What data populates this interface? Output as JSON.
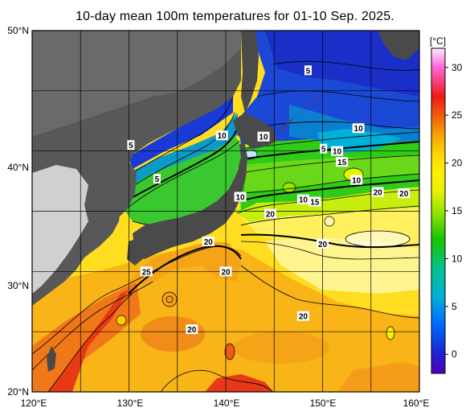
{
  "title": "10-day mean 100m temperatures for 01-10 Sep. 2025.",
  "colorbar": {
    "unit_label": "[°C]",
    "ticks": [
      "30",
      "25",
      "20",
      "15",
      "10",
      "5",
      "0"
    ],
    "tick_values": [
      30,
      25,
      20,
      15,
      10,
      5,
      0
    ],
    "range": [
      -2,
      32
    ],
    "stops": [
      {
        "value": 32,
        "color": "#ffe9ff"
      },
      {
        "value": 30,
        "color": "#ff66dd"
      },
      {
        "value": 27,
        "color": "#f01818"
      },
      {
        "value": 25,
        "color": "#f05a10"
      },
      {
        "value": 23,
        "color": "#f5a000"
      },
      {
        "value": 21,
        "color": "#ffd500"
      },
      {
        "value": 19,
        "color": "#fff000"
      },
      {
        "value": 17,
        "color": "#e6f200"
      },
      {
        "value": 15,
        "color": "#9ae600"
      },
      {
        "value": 12,
        "color": "#16c400"
      },
      {
        "value": 9,
        "color": "#00c48a"
      },
      {
        "value": 6,
        "color": "#00b0d8"
      },
      {
        "value": 3,
        "color": "#0066ff"
      },
      {
        "value": 0,
        "color": "#1e22d0"
      },
      {
        "value": -2,
        "color": "#5000b8"
      }
    ]
  },
  "axes": {
    "lat_labels": [
      "50°N",
      "40°N",
      "30°N",
      "20°N"
    ],
    "lat_values": [
      50,
      40,
      30,
      20
    ],
    "lon_labels": [
      "120°E",
      "130°E",
      "140°E",
      "150°E",
      "160°E"
    ],
    "lon_values": [
      120,
      130,
      140,
      150,
      160
    ],
    "lat_range": [
      20,
      50
    ],
    "lon_range": [
      120,
      160
    ]
  },
  "contour_labels": [
    {
      "text": "5",
      "lon": 148.5,
      "lat": 46.7
    },
    {
      "text": "10",
      "lon": 139.6,
      "lat": 41.3
    },
    {
      "text": "10",
      "lon": 143.9,
      "lat": 41.2
    },
    {
      "text": "10",
      "lon": 153.7,
      "lat": 41.9
    },
    {
      "text": "5",
      "lon": 130.2,
      "lat": 40.5
    },
    {
      "text": "5",
      "lon": 150.1,
      "lat": 40.2
    },
    {
      "text": "10",
      "lon": 151.5,
      "lat": 40.0
    },
    {
      "text": "15",
      "lon": 152.0,
      "lat": 39.1
    },
    {
      "text": "10",
      "lon": 153.5,
      "lat": 37.6
    },
    {
      "text": "5",
      "lon": 132.9,
      "lat": 37.7
    },
    {
      "text": "20",
      "lon": 155.7,
      "lat": 36.6
    },
    {
      "text": "20",
      "lon": 158.4,
      "lat": 36.5
    },
    {
      "text": "10",
      "lon": 141.5,
      "lat": 36.2
    },
    {
      "text": "10",
      "lon": 148.0,
      "lat": 36.0
    },
    {
      "text": "15",
      "lon": 149.2,
      "lat": 35.8
    },
    {
      "text": "20",
      "lon": 144.6,
      "lat": 34.8
    },
    {
      "text": "20",
      "lon": 138.2,
      "lat": 32.5
    },
    {
      "text": "20",
      "lon": 150.0,
      "lat": 32.3
    },
    {
      "text": "25",
      "lon": 131.8,
      "lat": 30.0
    },
    {
      "text": "20",
      "lon": 140.0,
      "lat": 30.0
    },
    {
      "text": "20",
      "lon": 148.0,
      "lat": 26.3
    },
    {
      "text": "20",
      "lon": 136.5,
      "lat": 25.2
    }
  ]
}
